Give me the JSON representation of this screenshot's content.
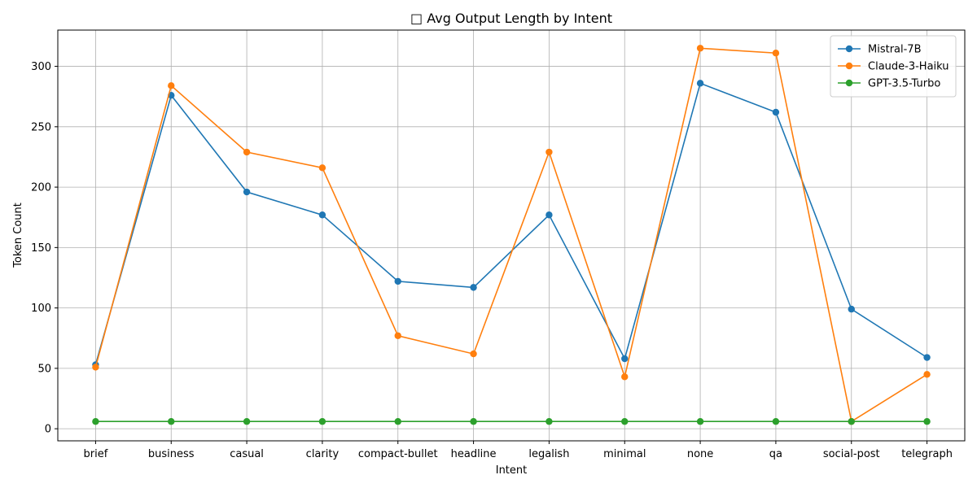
{
  "chart_data": {
    "type": "line",
    "title": "□ Avg Output Length by Intent",
    "xlabel": "Intent",
    "ylabel": "Token Count",
    "categories": [
      "brief",
      "business",
      "casual",
      "clarity",
      "compact-bullet",
      "headline",
      "legalish",
      "minimal",
      "none",
      "qa",
      "social-post",
      "telegraph"
    ],
    "ylim": [
      -10,
      330
    ],
    "yticks": [
      0,
      50,
      100,
      150,
      200,
      250,
      300
    ],
    "grid": true,
    "legend_position": "top-right",
    "series": [
      {
        "name": "Mistral-7B",
        "color": "#1f77b4",
        "values": [
          53,
          276,
          196,
          177,
          122,
          117,
          177,
          58,
          286,
          262,
          99,
          59
        ]
      },
      {
        "name": "Claude-3-Haiku",
        "color": "#ff7f0e",
        "values": [
          51,
          284,
          229,
          216,
          77,
          62,
          229,
          43,
          315,
          311,
          6,
          45
        ]
      },
      {
        "name": "GPT-3.5-Turbo",
        "color": "#2ca02c",
        "values": [
          6,
          6,
          6,
          6,
          6,
          6,
          6,
          6,
          6,
          6,
          6,
          6
        ]
      }
    ]
  }
}
